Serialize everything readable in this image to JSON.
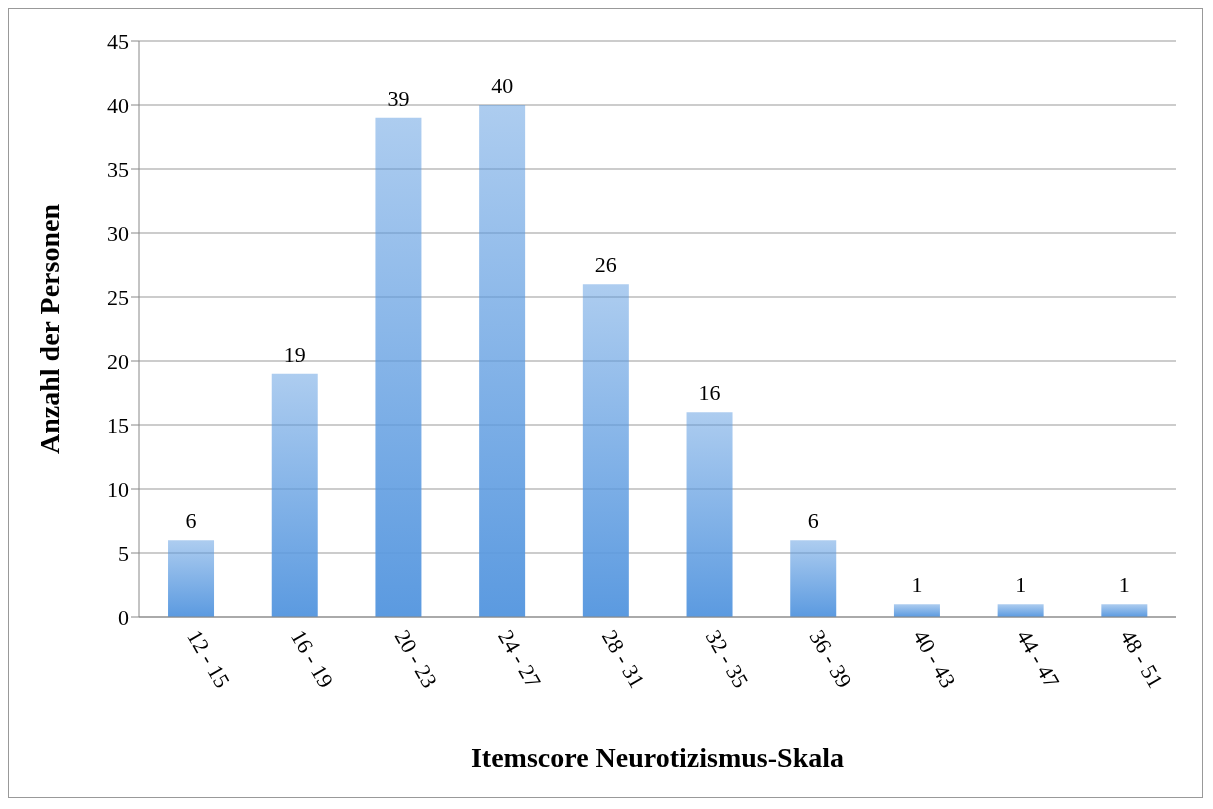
{
  "chart_data": {
    "type": "bar",
    "xlabel": "Itemscore Neurotizismus-Skala",
    "ylabel": "Anzahl der Personen",
    "categories": [
      "12 - 15",
      "16 - 19",
      "20 - 23",
      "24 - 27",
      "28 - 31",
      "32 - 35",
      "36 - 39",
      "40 - 43",
      "44 - 47",
      "48 - 51"
    ],
    "values": [
      6,
      19,
      39,
      40,
      26,
      16,
      6,
      1,
      1,
      1
    ],
    "color": "#5b9ae0",
    "ylim": [
      0,
      45
    ],
    "yticks": [
      0,
      5,
      10,
      15,
      20,
      25,
      30,
      35,
      40,
      45
    ],
    "grid": "y",
    "data_labels": true
  }
}
